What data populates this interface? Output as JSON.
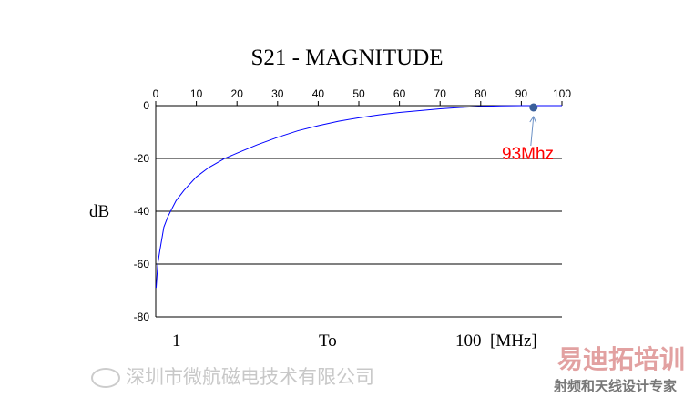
{
  "chart_data": {
    "type": "line",
    "title": "S21 - MAGNITUDE",
    "ylabel": "dB",
    "xlim": [
      0,
      100
    ],
    "ylim": [
      -80,
      0
    ],
    "x_ticks": [
      0,
      10,
      20,
      30,
      40,
      50,
      60,
      70,
      80,
      90,
      100
    ],
    "y_ticks": [
      0,
      -20,
      -40,
      -60,
      -80
    ],
    "grid": "horizontal",
    "series": [
      {
        "name": "S21",
        "color": "#0000ff",
        "x": [
          0.1,
          0.5,
          1,
          2,
          3,
          5,
          7,
          10,
          13,
          17,
          20,
          25,
          30,
          35,
          40,
          45,
          50,
          55,
          60,
          65,
          70,
          75,
          80,
          85,
          90,
          95,
          100
        ],
        "y": [
          -69,
          -60,
          -55,
          -46,
          -42,
          -36,
          -32,
          -27,
          -23.5,
          -20,
          -18,
          -14.8,
          -12,
          -9.5,
          -7.6,
          -5.9,
          -4.6,
          -3.5,
          -2.6,
          -1.9,
          -1.2,
          -0.7,
          -0.3,
          -0.1,
          0,
          0,
          0
        ]
      }
    ],
    "marker": {
      "x": 93,
      "y": 0,
      "label": "93Mhz",
      "label_color": "#ff0000",
      "color": "#3a5f9a"
    },
    "bottom_labels": {
      "start": "1",
      "mid": "To",
      "end": "100  [MHz]"
    }
  },
  "watermark": {
    "company": "深圳市微航磁电技术有限公司",
    "brand": "易迪拓培训",
    "slogan": "射频和天线设计专家"
  }
}
